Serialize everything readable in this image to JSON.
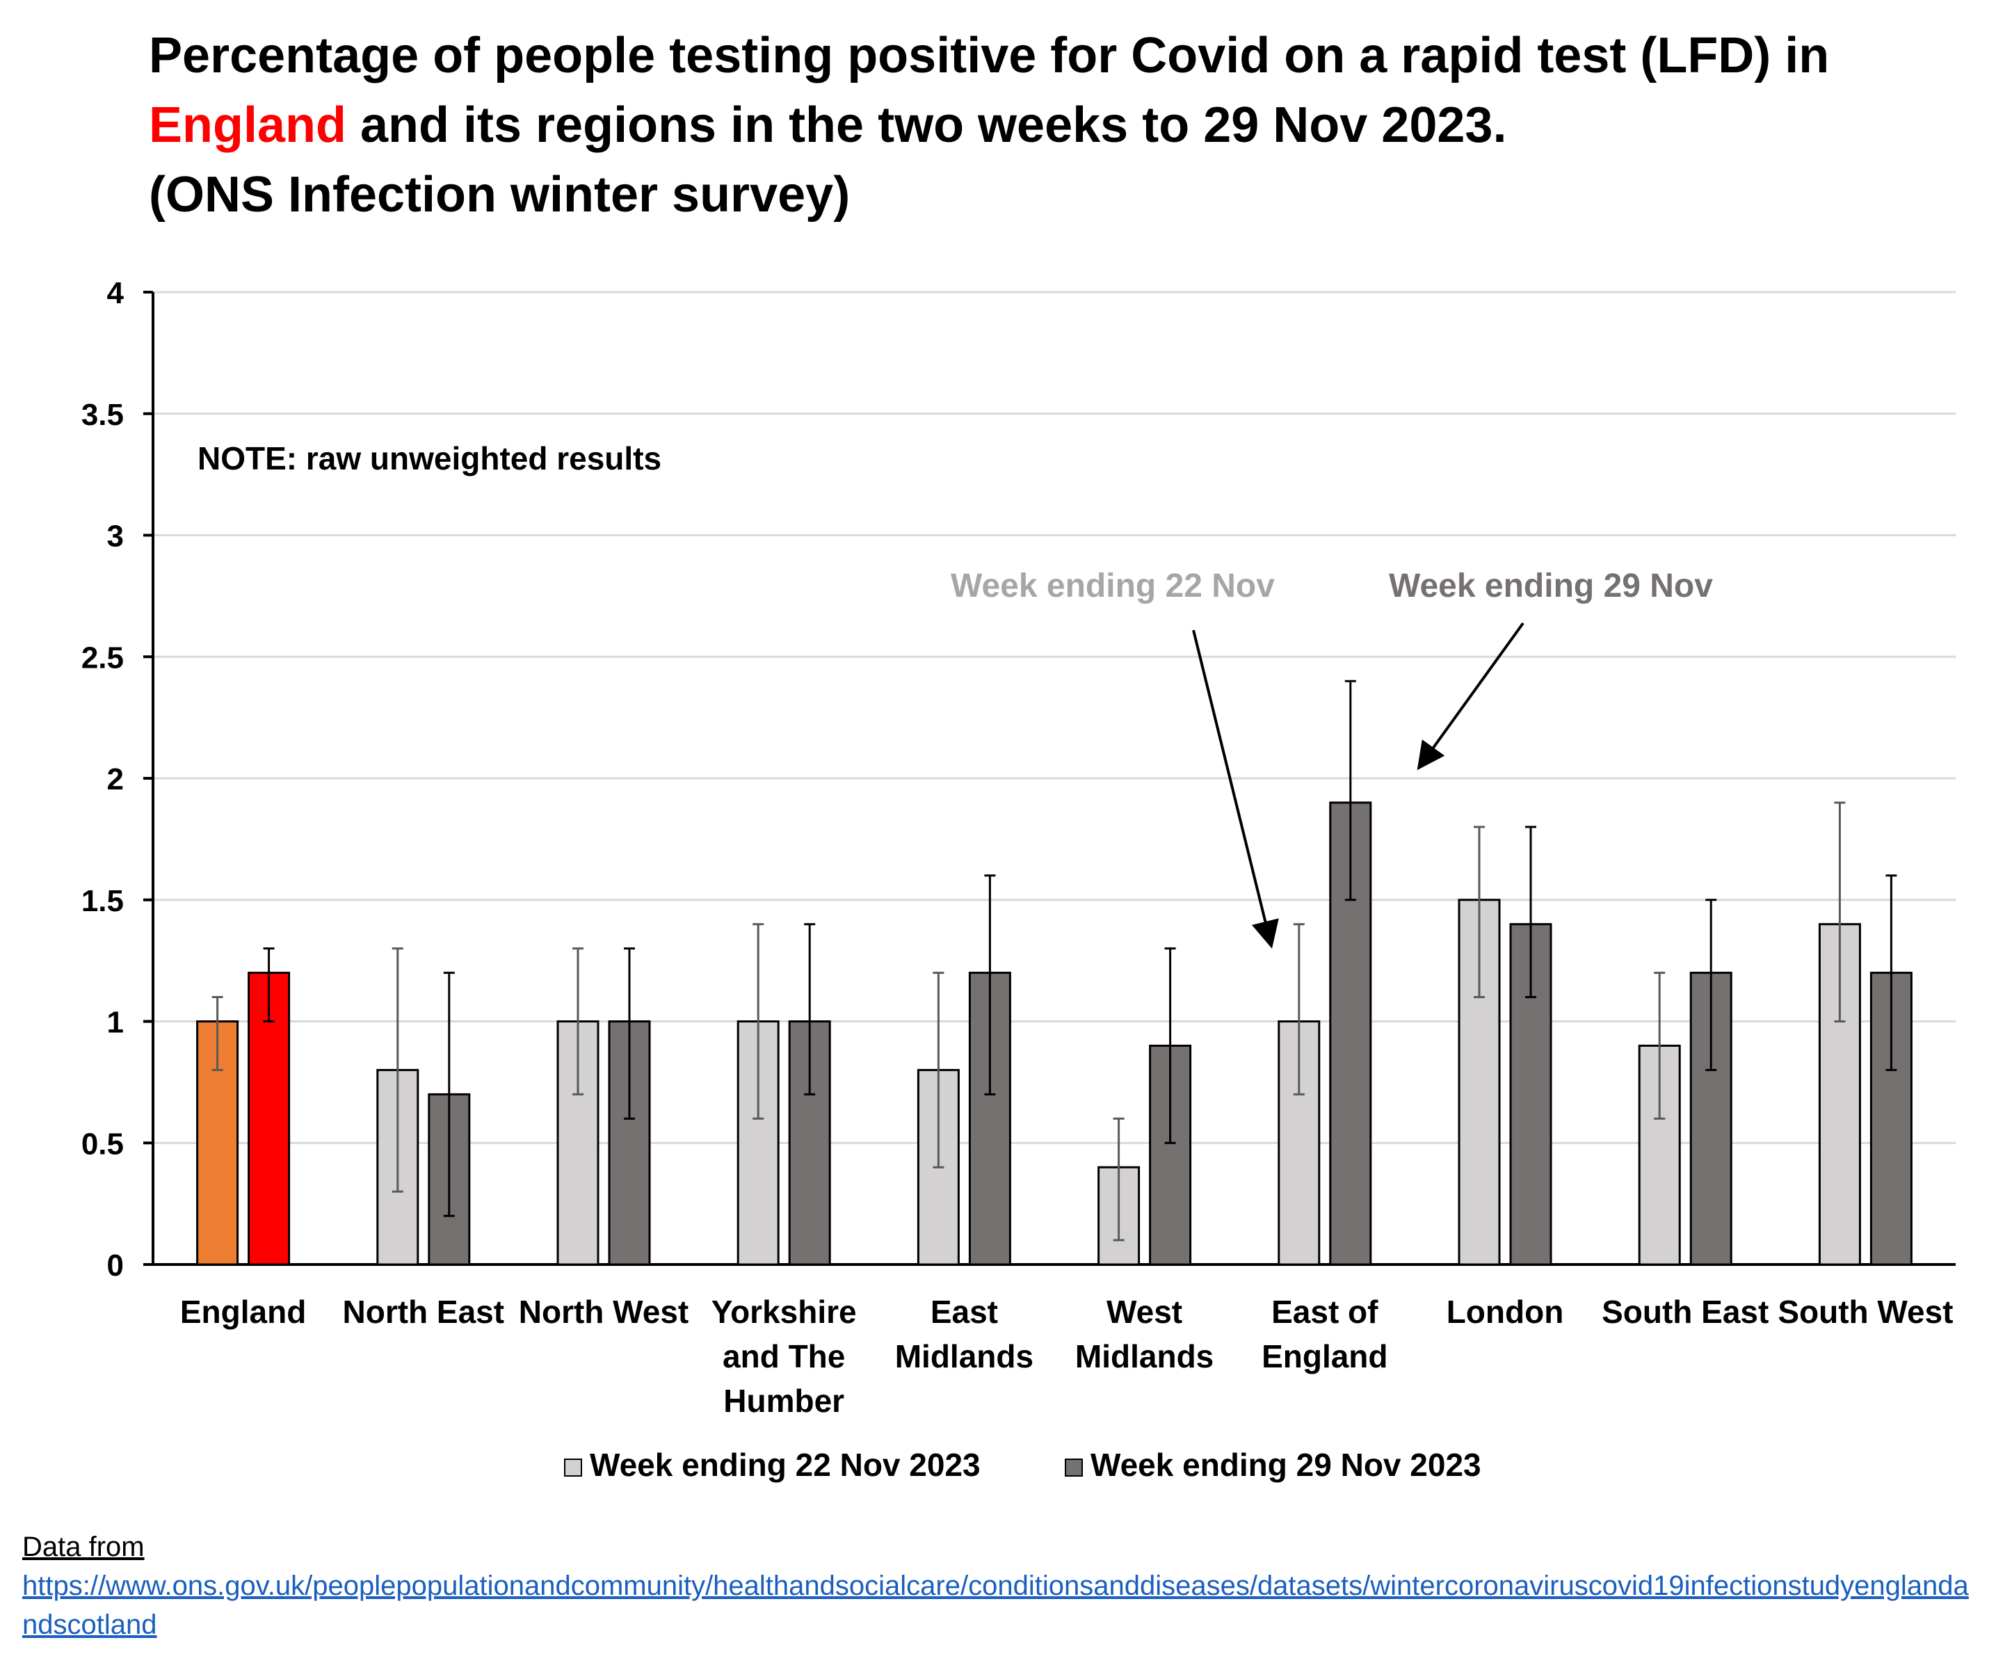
{
  "title": {
    "line1": "Percentage of people testing positive for Covid on a rapid test (LFD) in",
    "line2_highlight": "England",
    "line2_rest": " and its regions in the two weeks to 29 Nov 2023.",
    "line3": "(ONS Infection winter survey)"
  },
  "source": {
    "label": "Data from",
    "url": "https://www.ons.gov.uk/peoplepopulationandcommunity/healthandsocialcare/conditionsanddiseases/datasets/wintercoronaviruscovid19infectionstudyenglandandscotland"
  },
  "chart_data": {
    "type": "bar",
    "note": "NOTE: raw unweighted results",
    "ylim": [
      0,
      4
    ],
    "yticks": [
      "0",
      "0.5",
      "1",
      "1.5",
      "2",
      "2.5",
      "3",
      "3.5",
      "4"
    ],
    "grid": true,
    "legend_position": "bottom",
    "categories": [
      [
        "England"
      ],
      [
        "North East"
      ],
      [
        "North West"
      ],
      [
        "Yorkshire",
        "and The",
        "Humber"
      ],
      [
        "East",
        "Midlands"
      ],
      [
        "West",
        "Midlands"
      ],
      [
        "East of",
        "England"
      ],
      [
        "London"
      ],
      [
        "South East"
      ],
      [
        "South West"
      ]
    ],
    "series": [
      {
        "name": "Week ending 22 Nov 2023",
        "color": "#d3d1d1",
        "values": [
          1.0,
          0.8,
          1.0,
          1.0,
          0.8,
          0.4,
          1.0,
          1.5,
          0.9,
          1.4
        ],
        "lower": [
          0.8,
          0.3,
          0.7,
          0.6,
          0.4,
          0.1,
          0.7,
          1.1,
          0.6,
          1.0
        ],
        "upper": [
          1.1,
          1.3,
          1.3,
          1.4,
          1.2,
          0.6,
          1.4,
          1.8,
          1.2,
          1.9
        ]
      },
      {
        "name": "Week ending 29 Nov 2023",
        "color": "#757171",
        "values": [
          1.2,
          0.7,
          1.0,
          1.0,
          1.2,
          0.9,
          1.9,
          1.4,
          1.2,
          1.2
        ],
        "lower": [
          1.0,
          0.2,
          0.6,
          0.7,
          0.7,
          0.5,
          1.5,
          1.1,
          0.8,
          0.8
        ],
        "upper": [
          1.3,
          1.2,
          1.3,
          1.4,
          1.6,
          1.3,
          2.4,
          1.8,
          1.5,
          1.6
        ]
      }
    ],
    "england_colors": [
      "#ed7d31",
      "#ff0000"
    ],
    "annotations": [
      {
        "text": "Week ending 22 Nov",
        "color": "#a6a6a6",
        "points_to": "East of England, week ending 22 Nov"
      },
      {
        "text": "Week ending 29 Nov",
        "color": "#767171",
        "points_to": "East of England, week ending 29 Nov"
      }
    ]
  }
}
